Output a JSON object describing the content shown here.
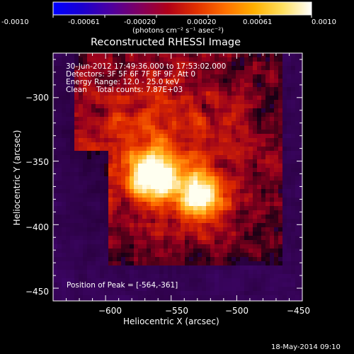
{
  "colorbar": {
    "tick_labels": [
      "-0.0010",
      "-0.00061",
      "-0.00020",
      "0.00020",
      "0.00061",
      "0.0010"
    ],
    "unit_text": "(photons cm⁻² s⁻¹ asec⁻²)",
    "colors": [
      "#0000ff",
      "#1a00d0",
      "#4d00a0",
      "#800060",
      "#b00018",
      "#e03000",
      "#ff7000",
      "#ffb000",
      "#ffe060",
      "#ffffff"
    ]
  },
  "image": {
    "title": "Reconstructed RHESSI Image",
    "info_lines": [
      "30-Jun-2012 17:49:36.000 to 17:53:02.000",
      "Detectors: 3F 5F 6F 7F 8F 9F, Att 0",
      "Energy Range: 12.0 - 25.0 keV",
      "Clean    Total counts: 7.87E+03"
    ],
    "peak_text": "Position of Peak = [-564,-361]"
  },
  "chart_data": {
    "type": "heatmap",
    "title": "Reconstructed RHESSI Image",
    "xlabel": "Heliocentric X (arcsec)",
    "ylabel": "Heliocentric Y (arcsec)",
    "xlim": [
      -640,
      -450
    ],
    "ylim": [
      -460,
      -265
    ],
    "x_ticks": [
      -600,
      -550,
      -500,
      -450
    ],
    "y_ticks": [
      -300,
      -350,
      -400,
      -450
    ],
    "x_tick_labels": [
      "−600",
      "−550",
      "−500",
      "−450"
    ],
    "y_tick_labels": [
      "−300",
      "−350",
      "−400",
      "−450"
    ],
    "peak_position": [
      -564,
      -361
    ],
    "sources": [
      {
        "x": -564,
        "y": -361,
        "relative_intensity": 1.0
      },
      {
        "x": -528,
        "y": -378,
        "relative_intensity": 0.88
      }
    ],
    "colorbar_range": [
      -0.001,
      0.001
    ],
    "colormap": "hot-with-blue-negative",
    "background_color": "#000000"
  },
  "footer": {
    "date": "18-May-2014 09:10"
  }
}
